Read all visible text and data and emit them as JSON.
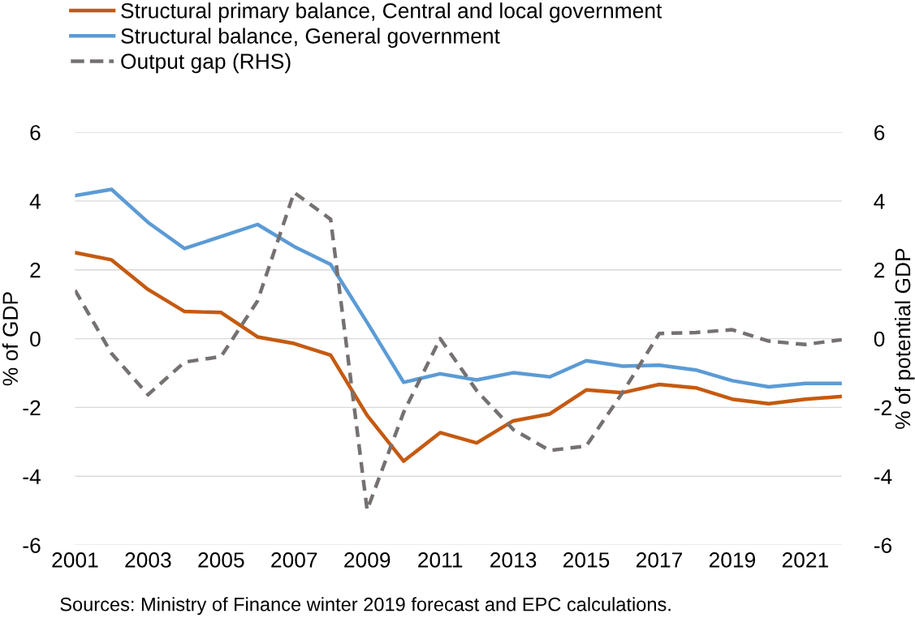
{
  "chart_data": {
    "type": "line",
    "x": [
      2001,
      2002,
      2003,
      2004,
      2005,
      2006,
      2007,
      2008,
      2009,
      2010,
      2011,
      2012,
      2013,
      2014,
      2015,
      2016,
      2017,
      2018,
      2019,
      2020,
      2021,
      2022
    ],
    "series": [
      {
        "name": "Structural primary balance, Central and local government",
        "color": "#c55a11",
        "values": [
          2.5,
          2.29,
          1.43,
          0.79,
          0.76,
          0.05,
          -0.14,
          -0.48,
          -2.23,
          -3.56,
          -2.73,
          -3.03,
          -2.39,
          -2.19,
          -1.49,
          -1.57,
          -1.33,
          -1.43,
          -1.76,
          -1.89,
          -1.76,
          -1.68
        ]
      },
      {
        "name": "Structural balance, General government",
        "color": "#5b9bd5",
        "values": [
          4.16,
          4.34,
          3.38,
          2.62,
          2.97,
          3.32,
          2.68,
          2.16,
          0.47,
          -1.27,
          -1.02,
          -1.2,
          -0.99,
          -1.11,
          -0.64,
          -0.8,
          -0.77,
          -0.91,
          -1.22,
          -1.4,
          -1.3,
          -1.3
        ]
      },
      {
        "name": "Output gap (RHS)",
        "color": "#767171",
        "axis": "y2",
        "line_style": "dashed",
        "values": [
          1.41,
          -0.43,
          -1.63,
          -0.68,
          -0.52,
          1.1,
          4.25,
          3.47,
          -4.98,
          -2.14,
          0.0,
          -1.51,
          -2.64,
          -3.25,
          -3.12,
          -1.56,
          0.15,
          0.18,
          0.26,
          -0.07,
          -0.17,
          -0.03
        ]
      }
    ],
    "ylabel": "% of GDP",
    "y2label": "% of potential GDP",
    "xlim": [
      2001,
      2022
    ],
    "xticks": [
      2001,
      2003,
      2005,
      2007,
      2009,
      2011,
      2013,
      2015,
      2017,
      2019,
      2021
    ],
    "ylim": [
      -6,
      6
    ],
    "yticks": [
      -6,
      -4,
      -2,
      0,
      2,
      4,
      6
    ],
    "y2lim": [
      -6,
      6
    ],
    "y2ticks": [
      -6,
      -4,
      -2,
      0,
      2,
      4,
      6
    ],
    "grid": "y",
    "legend": "top",
    "line_style": "solid",
    "marker": "none",
    "annotations": [
      "Sources: Ministry of Finance winter 2019 forecast and EPC calculations."
    ]
  }
}
